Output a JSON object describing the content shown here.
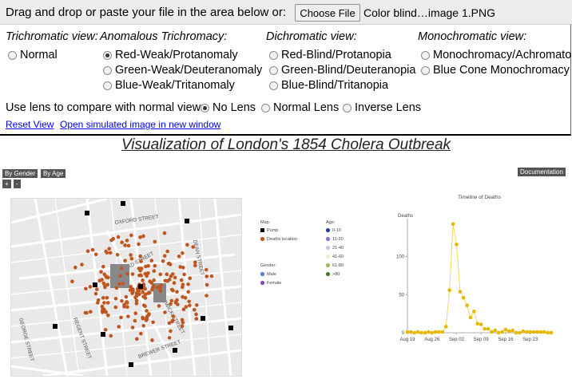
{
  "topbar": {
    "drop_label": "Drag and drop or paste your file in the area below or:",
    "choose_file": "Choose File",
    "file_name": "Color blind…image 1.PNG"
  },
  "views": {
    "trichromatic": {
      "heading": "Trichromatic view:",
      "options": [
        "Normal"
      ]
    },
    "anomalous": {
      "heading": "Anomalous Trichromacy:",
      "options": [
        "Red-Weak/Protanomaly",
        "Green-Weak/Deuteranomaly",
        "Blue-Weak/Tritanomaly"
      ]
    },
    "dichromatic": {
      "heading": "Dichromatic view:",
      "options": [
        "Red-Blind/Protanopia",
        "Green-Blind/Deuteranopia",
        "Blue-Blind/Tritanopia"
      ]
    },
    "monochromatic": {
      "heading": "Monochromatic view:",
      "options": [
        "Monochromacy/Achromatopsia",
        "Blue Cone Monochromacy"
      ]
    },
    "selected": "Red-Weak/Protanomaly"
  },
  "lens": {
    "label": "Use lens to compare with normal view:",
    "options": [
      "No Lens",
      "Normal Lens",
      "Inverse Lens"
    ],
    "selected": "No Lens"
  },
  "links": {
    "reset": "Reset View",
    "open_window": "Open simulated image in new window"
  },
  "viz": {
    "title": "Visualization of London's 1854 Cholera Outbreak",
    "buttons": {
      "by_gender": "By Gender",
      "by_age": "By Age",
      "zoom_in": "+",
      "zoom_out": "-",
      "documentation": "Documentation"
    },
    "streets": [
      "OXFORD STREET",
      "DEAN STREET",
      "REGENT STREET",
      "GEORGE STREET",
      "BREWER STREET",
      "BROAD STREET",
      "BERWICK STREET"
    ],
    "legend": {
      "map_title": "Map:",
      "map_items": [
        {
          "label": "Pump",
          "color": "#000000"
        },
        {
          "label": "Deaths location",
          "color": "#c0561f"
        }
      ],
      "gender_title": "Gender:",
      "gender_items": [
        {
          "label": "Male",
          "color": "#5b7fd6"
        },
        {
          "label": "Female",
          "color": "#8a4bb8"
        }
      ],
      "age_title": "Age:",
      "age_items": [
        {
          "label": "0-10",
          "color": "#2c3f9a"
        },
        {
          "label": "11-20",
          "color": "#7f7fd2"
        },
        {
          "label": "21-40",
          "color": "#c8c8e6"
        },
        {
          "label": "41-60",
          "color": "#f2efc6"
        },
        {
          "label": "61-80",
          "color": "#9cbd5e"
        },
        {
          "label": ">80",
          "color": "#4d7d2b"
        }
      ]
    },
    "colors": {
      "deaths": "#c0561f",
      "timeline": "#e6b800",
      "pump": "#000000"
    }
  },
  "chart_data": {
    "type": "line",
    "title": "Timeline of Deaths",
    "ylabel": "Deaths",
    "xlabel": "",
    "x_ticks": [
      "Aug 19",
      "Aug 26",
      "Sep 02",
      "Sep 09",
      "Sep 16",
      "Sep 23"
    ],
    "y_ticks": [
      0,
      50,
      100
    ],
    "ylim": [
      0,
      150
    ],
    "x": [
      "Aug 19",
      "Aug 20",
      "Aug 21",
      "Aug 22",
      "Aug 23",
      "Aug 24",
      "Aug 25",
      "Aug 26",
      "Aug 27",
      "Aug 28",
      "Aug 29",
      "Aug 30",
      "Aug 31",
      "Sep 01",
      "Sep 02",
      "Sep 03",
      "Sep 04",
      "Sep 05",
      "Sep 06",
      "Sep 07",
      "Sep 08",
      "Sep 09",
      "Sep 10",
      "Sep 11",
      "Sep 12",
      "Sep 13",
      "Sep 14",
      "Sep 15",
      "Sep 16",
      "Sep 17",
      "Sep 18",
      "Sep 19",
      "Sep 20",
      "Sep 21",
      "Sep 22",
      "Sep 23",
      "Sep 24",
      "Sep 25",
      "Sep 26",
      "Sep 27",
      "Sep 28",
      "Sep 29"
    ],
    "values": [
      1,
      1,
      0,
      1,
      0,
      0,
      1,
      0,
      1,
      1,
      1,
      8,
      56,
      143,
      116,
      54,
      46,
      36,
      20,
      28,
      12,
      11,
      5,
      5,
      1,
      3,
      0,
      1,
      4,
      2,
      3,
      0,
      0,
      2,
      1,
      1,
      1,
      1,
      1,
      1,
      0,
      0
    ],
    "grid": false
  }
}
